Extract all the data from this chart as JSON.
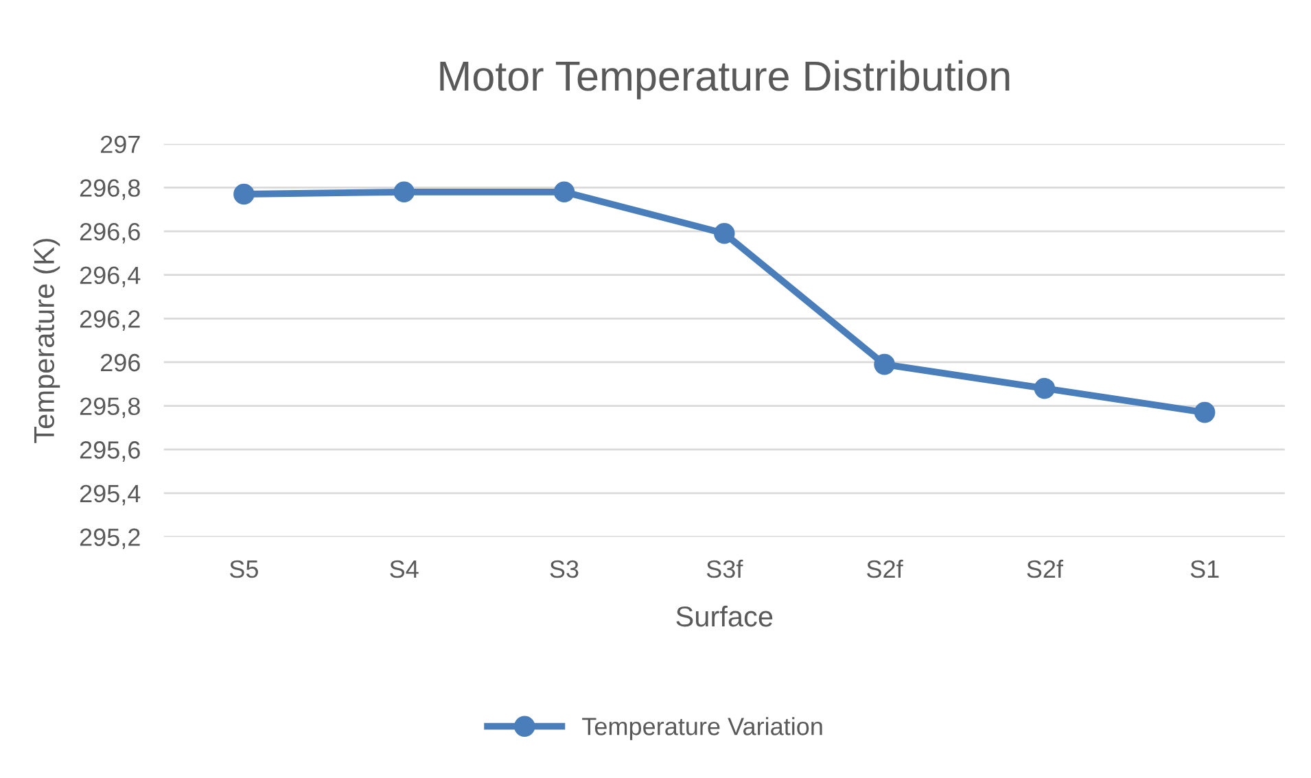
{
  "chart_data": {
    "type": "line",
    "title": "Motor Temperature Distribution",
    "xlabel": "Surface",
    "ylabel": "Temperature (K)",
    "categories": [
      "S5",
      "S4",
      "S3",
      "S3f",
      "S2f",
      "S2f",
      "S1"
    ],
    "series": [
      {
        "name": "Temperature Variation",
        "color": "#4a7ebb",
        "values": [
          296.77,
          296.78,
          296.78,
          296.59,
          295.99,
          295.88,
          295.77
        ]
      }
    ],
    "ylim": [
      295.2,
      297
    ],
    "yticks": [
      {
        "value": 295.2,
        "label": "295,2"
      },
      {
        "value": 295.4,
        "label": "295,4"
      },
      {
        "value": 295.6,
        "label": "295,6"
      },
      {
        "value": 295.8,
        "label": "295,8"
      },
      {
        "value": 296,
        "label": "296"
      },
      {
        "value": 296.2,
        "label": "296,2"
      },
      {
        "value": 296.4,
        "label": "296,4"
      },
      {
        "value": 296.6,
        "label": "296,6"
      },
      {
        "value": 296.8,
        "label": "296,8"
      },
      {
        "value": 297,
        "label": "297"
      }
    ],
    "grid": "y",
    "legend": "bottom",
    "marker": "circle",
    "line_style": "solid"
  }
}
